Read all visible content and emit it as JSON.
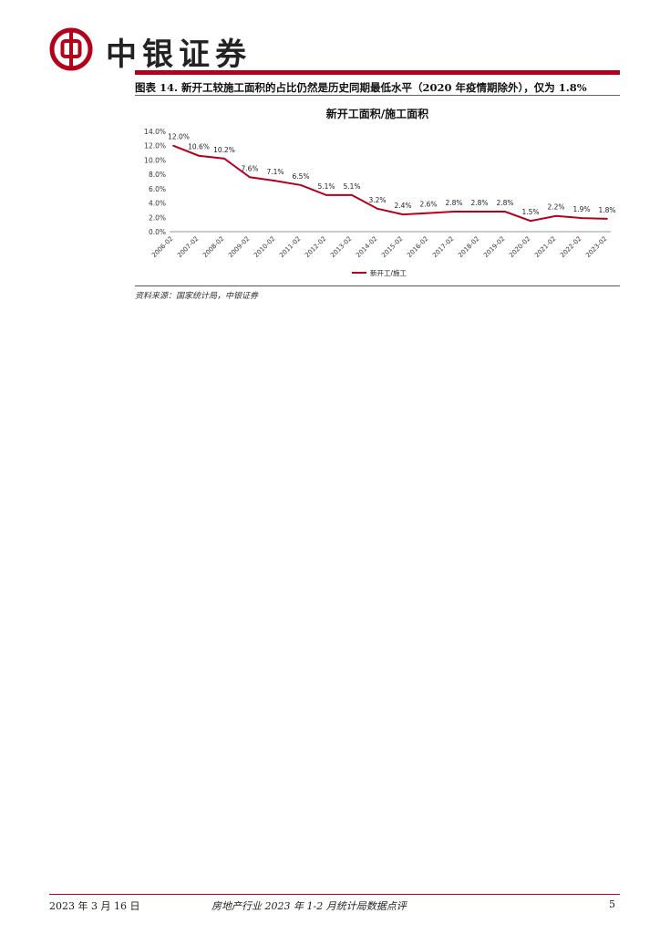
{
  "header": {
    "brand": "中银证券"
  },
  "figure": {
    "title": "图表 14. 新开工较施工面积的占比仍然是历史同期最低水平（2020 年疫情期除外），仅为 1.8%",
    "source": "资料来源：国家统计局，中银证券"
  },
  "chart_data": {
    "type": "line",
    "title": "新开工面积/施工面积",
    "categories": [
      "2006-02",
      "2007-02",
      "2008-02",
      "2009-02",
      "2010-02",
      "2011-02",
      "2012-02",
      "2013-02",
      "2014-02",
      "2015-02",
      "2016-02",
      "2017-02",
      "2018-02",
      "2019-02",
      "2020-02",
      "2021-02",
      "2022-02",
      "2023-02"
    ],
    "series": [
      {
        "name": "新开工/施工",
        "values": [
          12.0,
          10.6,
          10.2,
          7.6,
          7.1,
          6.5,
          5.1,
          5.1,
          3.2,
          2.4,
          2.6,
          2.8,
          2.8,
          2.8,
          1.5,
          2.2,
          1.9,
          1.8
        ],
        "color": "#b3001b"
      }
    ],
    "data_labels": [
      "12.0%",
      "10.6%",
      "10.2%",
      "7.6%",
      "7.1%",
      "6.5%",
      "5.1%",
      "5.1%",
      "3.2%",
      "2.4%",
      "2.6%",
      "2.8%",
      "2.8%",
      "2.8%",
      "1.5%",
      "2.2%",
      "1.9%",
      "1.8%"
    ],
    "yticks": [
      "0.0%",
      "2.0%",
      "4.0%",
      "6.0%",
      "8.0%",
      "10.0%",
      "12.0%",
      "14.0%"
    ],
    "ylim": [
      0,
      14
    ],
    "grid": false,
    "legend_position": "bottom"
  },
  "footer": {
    "date": "2023 年 3 月 16 日",
    "report": "房地产行业 2023 年 1-2 月统计局数据点评",
    "page": "5"
  }
}
